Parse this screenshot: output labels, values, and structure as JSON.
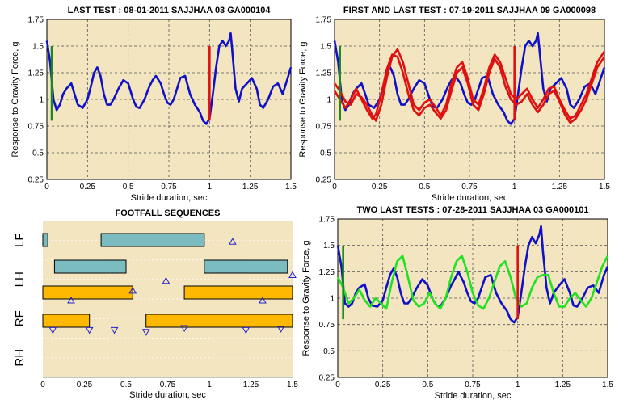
{
  "chart_data": [
    {
      "type": "line",
      "title": "LAST TEST : 08-01-2011  SAJJHAA 03 GA000104",
      "xlabel": "Stride duration, sec",
      "ylabel": "Response to Gravity Force, g",
      "xlim": [
        0,
        1.5
      ],
      "ylim": [
        0.25,
        1.75
      ],
      "xticks": [
        "0",
        "0.25",
        "0.5",
        "0.75",
        "1",
        "1.25",
        "1.5"
      ],
      "yticks": [
        "0.25",
        "0.5",
        "0.75",
        "1",
        "1.25",
        "1.5",
        "1.75"
      ],
      "grid": true,
      "series": [
        {
          "color": "#1010c8",
          "x": [
            0,
            0.02,
            0.04,
            0.06,
            0.08,
            0.1,
            0.12,
            0.15,
            0.17,
            0.19,
            0.22,
            0.25,
            0.27,
            0.29,
            0.31,
            0.33,
            0.35,
            0.37,
            0.39,
            0.41,
            0.44,
            0.47,
            0.5,
            0.53,
            0.55,
            0.57,
            0.6,
            0.63,
            0.65,
            0.67,
            0.7,
            0.72,
            0.74,
            0.76,
            0.78,
            0.8,
            0.82,
            0.85,
            0.88,
            0.91,
            0.94,
            0.96,
            0.98,
            1.0,
            1.02,
            1.04,
            1.06,
            1.08,
            1.1,
            1.12,
            1.13,
            1.14,
            1.16,
            1.18,
            1.2,
            1.23,
            1.26,
            1.29,
            1.31,
            1.33,
            1.36,
            1.39,
            1.42,
            1.45,
            1.48,
            1.5
          ],
          "y": [
            1.55,
            1.35,
            1.0,
            0.9,
            0.95,
            1.05,
            1.1,
            1.15,
            1.05,
            0.95,
            0.92,
            1.0,
            1.12,
            1.25,
            1.3,
            1.22,
            1.05,
            0.95,
            0.95,
            1.0,
            1.1,
            1.18,
            1.15,
            1.0,
            0.93,
            0.92,
            1.0,
            1.12,
            1.18,
            1.22,
            1.15,
            1.05,
            0.97,
            0.95,
            1.0,
            1.1,
            1.2,
            1.22,
            1.05,
            0.95,
            0.88,
            0.8,
            0.77,
            0.82,
            1.05,
            1.3,
            1.5,
            1.55,
            1.5,
            1.55,
            1.62,
            1.45,
            1.1,
            0.98,
            1.1,
            1.15,
            1.2,
            1.1,
            0.95,
            0.92,
            1.0,
            1.12,
            1.15,
            1.05,
            1.2,
            1.3
          ]
        }
      ],
      "markers": [
        {
          "x": 0.03,
          "y0": 0.8,
          "y1": 1.5,
          "color": "#1a8a1a"
        },
        {
          "x": 1.0,
          "y0": 0.8,
          "y1": 1.5,
          "color": "#e01010"
        }
      ]
    },
    {
      "type": "line",
      "title": "FIRST AND LAST TEST : 07-19-2011  SAJJHAA 09 GA000098",
      "xlabel": "Stride duration, sec",
      "ylabel": "Response to Gravity Force, g",
      "xlim": [
        0,
        1.5
      ],
      "ylim": [
        0.25,
        1.75
      ],
      "xticks": [
        "0",
        "0.25",
        "0.5",
        "0.75",
        "1",
        "1.25",
        "1.5"
      ],
      "yticks": [
        "0.25",
        "0.5",
        "0.75",
        "1",
        "1.25",
        "1.5",
        "1.75"
      ],
      "grid": true,
      "series": [
        {
          "color": "#1010c8",
          "x": [
            0,
            0.02,
            0.04,
            0.06,
            0.08,
            0.1,
            0.12,
            0.15,
            0.17,
            0.19,
            0.22,
            0.25,
            0.27,
            0.29,
            0.31,
            0.33,
            0.35,
            0.37,
            0.39,
            0.41,
            0.44,
            0.47,
            0.5,
            0.53,
            0.55,
            0.57,
            0.6,
            0.63,
            0.65,
            0.67,
            0.7,
            0.72,
            0.74,
            0.76,
            0.78,
            0.8,
            0.82,
            0.85,
            0.88,
            0.91,
            0.94,
            0.96,
            0.98,
            1.0,
            1.02,
            1.04,
            1.06,
            1.08,
            1.1,
            1.12,
            1.13,
            1.14,
            1.16,
            1.18,
            1.2,
            1.23,
            1.26,
            1.29,
            1.31,
            1.33,
            1.36,
            1.39,
            1.42,
            1.45,
            1.48,
            1.5
          ],
          "y": [
            1.55,
            1.35,
            1.0,
            0.9,
            0.95,
            1.05,
            1.1,
            1.15,
            1.05,
            0.95,
            0.92,
            1.0,
            1.12,
            1.25,
            1.3,
            1.22,
            1.05,
            0.95,
            0.95,
            1.0,
            1.1,
            1.18,
            1.15,
            1.0,
            0.93,
            0.92,
            1.0,
            1.12,
            1.18,
            1.22,
            1.15,
            1.05,
            0.97,
            0.95,
            1.0,
            1.1,
            1.2,
            1.22,
            1.05,
            0.95,
            0.88,
            0.8,
            0.77,
            0.82,
            1.05,
            1.3,
            1.5,
            1.55,
            1.5,
            1.55,
            1.62,
            1.45,
            1.1,
            0.98,
            1.1,
            1.15,
            1.2,
            1.1,
            0.95,
            0.92,
            1.0,
            1.12,
            1.15,
            1.05,
            1.2,
            1.3
          ]
        },
        {
          "color": "#e01010",
          "x": [
            0,
            0.03,
            0.06,
            0.09,
            0.12,
            0.15,
            0.18,
            0.21,
            0.23,
            0.26,
            0.29,
            0.32,
            0.35,
            0.38,
            0.41,
            0.44,
            0.47,
            0.5,
            0.53,
            0.56,
            0.59,
            0.62,
            0.65,
            0.68,
            0.71,
            0.74,
            0.77,
            0.8,
            0.83,
            0.86,
            0.89,
            0.92,
            0.95,
            0.98,
            1.01,
            1.04,
            1.07,
            1.1,
            1.13,
            1.16,
            1.19,
            1.22,
            1.25,
            1.28,
            1.31,
            1.34,
            1.37,
            1.4,
            1.43,
            1.46,
            1.5
          ],
          "y": [
            1.15,
            1.08,
            0.98,
            0.95,
            1.05,
            1.02,
            0.95,
            0.85,
            0.8,
            0.95,
            1.2,
            1.4,
            1.47,
            1.35,
            1.15,
            0.95,
            0.9,
            0.97,
            1.0,
            0.93,
            0.85,
            0.95,
            1.15,
            1.3,
            1.35,
            1.2,
            1.0,
            0.95,
            1.1,
            1.3,
            1.42,
            1.35,
            1.2,
            1.05,
            1.0,
            1.05,
            1.1,
            1.0,
            0.92,
            1.0,
            1.1,
            1.12,
            1.0,
            0.9,
            0.82,
            0.85,
            0.95,
            1.05,
            1.2,
            1.35,
            1.45
          ]
        },
        {
          "color": "#e01010",
          "x": [
            0,
            0.03,
            0.06,
            0.09,
            0.12,
            0.15,
            0.18,
            0.21,
            0.23,
            0.26,
            0.29,
            0.32,
            0.35,
            0.38,
            0.41,
            0.44,
            0.47,
            0.5,
            0.53,
            0.56,
            0.59,
            0.62,
            0.65,
            0.68,
            0.71,
            0.74,
            0.77,
            0.8,
            0.83,
            0.86,
            0.89,
            0.92,
            0.95,
            0.98,
            1.01,
            1.04,
            1.07,
            1.1,
            1.13,
            1.16,
            1.19,
            1.22,
            1.25,
            1.28,
            1.31,
            1.34,
            1.37,
            1.4,
            1.43,
            1.46,
            1.5
          ],
          "y": [
            1.08,
            1.0,
            0.92,
            1.0,
            1.1,
            1.0,
            0.9,
            0.82,
            0.86,
            1.05,
            1.28,
            1.42,
            1.4,
            1.25,
            1.05,
            0.9,
            0.85,
            0.92,
            0.95,
            0.88,
            0.82,
            0.9,
            1.08,
            1.25,
            1.3,
            1.15,
            0.95,
            0.9,
            1.05,
            1.25,
            1.38,
            1.3,
            1.12,
            1.0,
            0.95,
            0.98,
            1.05,
            0.95,
            0.88,
            0.95,
            1.05,
            1.08,
            0.98,
            0.86,
            0.78,
            0.82,
            0.9,
            1.0,
            1.15,
            1.3,
            1.4
          ]
        }
      ],
      "markers": [
        {
          "x": 0.03,
          "y0": 0.8,
          "y1": 1.5,
          "color": "#1a8a1a"
        },
        {
          "x": 1.0,
          "y0": 0.8,
          "y1": 1.5,
          "color": "#e01010"
        }
      ]
    },
    {
      "type": "gantt",
      "title": "FOOTFALL SEQUENCES",
      "xlabel": "Stride duration, sec",
      "xlim": [
        0,
        1.5
      ],
      "xticks": [
        "0",
        "0.25",
        "0.5",
        "0.75",
        "1",
        "1.25",
        "1.5"
      ],
      "rows": [
        "LF",
        "LH",
        "RF",
        "RH"
      ],
      "bars": [
        {
          "row": "LF",
          "start": 0.0,
          "end": 0.03,
          "color": "#7bbcc0"
        },
        {
          "row": "LF",
          "start": 0.35,
          "end": 0.97,
          "color": "#7bbcc0"
        },
        {
          "row": "LH",
          "start": 0.07,
          "end": 0.5,
          "color": "#7bbcc0"
        },
        {
          "row": "LH",
          "start": 0.97,
          "end": 1.47,
          "color": "#7bbcc0"
        },
        {
          "row": "RF",
          "start": 0.0,
          "end": 0.54,
          "color": "#ffb800"
        },
        {
          "row": "RF",
          "start": 0.85,
          "end": 1.5,
          "color": "#ffb800"
        },
        {
          "row": "RH",
          "start": 0.0,
          "end": 0.28,
          "color": "#ffb800"
        },
        {
          "row": "RH",
          "start": 0.62,
          "end": 1.5,
          "color": "#ffb800"
        }
      ],
      "up_triangles": [
        {
          "x": 1.14,
          "y": 0.5
        },
        {
          "x": 0.74,
          "y": 1.5
        },
        {
          "x": 0.54,
          "y": 1.75
        },
        {
          "x": 1.5,
          "y": 1.35
        },
        {
          "x": 0.17,
          "y": 2.0
        },
        {
          "x": 1.32,
          "y": 2.0
        }
      ],
      "down_triangles": [
        {
          "x": 0.06,
          "y": 2.75
        },
        {
          "x": 0.28,
          "y": 2.75
        },
        {
          "x": 0.43,
          "y": 2.75
        },
        {
          "x": 0.62,
          "y": 2.8
        },
        {
          "x": 0.85,
          "y": 2.7
        },
        {
          "x": 1.22,
          "y": 2.75
        },
        {
          "x": 1.43,
          "y": 2.72
        }
      ]
    },
    {
      "type": "line",
      "title": "TWO LAST TESTS : 07-28-2011  SAJJHAA 03 GA000101",
      "xlabel": "Stride duration, sec",
      "ylabel": "Response to Gravity Force, g",
      "xlim": [
        0,
        1.5
      ],
      "ylim": [
        0.25,
        1.75
      ],
      "xticks": [
        "0",
        "0.25",
        "0.5",
        "0.75",
        "1",
        "1.25",
        "1.5"
      ],
      "yticks": [
        "0.25",
        "0.5",
        "0.75",
        "1",
        "1.25",
        "1.5",
        "1.75"
      ],
      "grid": true,
      "series": [
        {
          "color": "#1010c8",
          "x": [
            0,
            0.02,
            0.04,
            0.06,
            0.08,
            0.1,
            0.12,
            0.15,
            0.17,
            0.19,
            0.22,
            0.25,
            0.27,
            0.29,
            0.31,
            0.33,
            0.35,
            0.37,
            0.39,
            0.41,
            0.44,
            0.47,
            0.5,
            0.53,
            0.55,
            0.57,
            0.6,
            0.63,
            0.65,
            0.67,
            0.7,
            0.72,
            0.74,
            0.76,
            0.78,
            0.8,
            0.82,
            0.85,
            0.88,
            0.91,
            0.94,
            0.96,
            0.98,
            1.0,
            1.02,
            1.04,
            1.06,
            1.08,
            1.1,
            1.12,
            1.13,
            1.14,
            1.16,
            1.18,
            1.2,
            1.23,
            1.26,
            1.29,
            1.31,
            1.33,
            1.36,
            1.39,
            1.42,
            1.45,
            1.48,
            1.5
          ],
          "y": [
            1.5,
            1.3,
            0.95,
            0.92,
            0.95,
            1.05,
            1.1,
            1.13,
            1.0,
            0.93,
            0.92,
            0.98,
            1.1,
            1.22,
            1.28,
            1.2,
            1.05,
            0.95,
            0.95,
            1.0,
            1.1,
            1.18,
            1.12,
            0.98,
            0.93,
            0.92,
            1.0,
            1.12,
            1.18,
            1.25,
            1.15,
            1.05,
            0.97,
            0.95,
            1.0,
            1.1,
            1.2,
            1.22,
            1.05,
            0.95,
            0.88,
            0.8,
            0.77,
            0.82,
            1.05,
            1.3,
            1.5,
            1.58,
            1.52,
            1.6,
            1.68,
            1.45,
            1.1,
            0.95,
            1.05,
            1.12,
            1.18,
            1.05,
            0.93,
            0.92,
            1.0,
            1.1,
            1.12,
            1.05,
            1.22,
            1.3
          ]
        },
        {
          "color": "#22e022",
          "x": [
            0,
            0.03,
            0.06,
            0.09,
            0.12,
            0.15,
            0.18,
            0.21,
            0.24,
            0.27,
            0.3,
            0.33,
            0.36,
            0.39,
            0.42,
            0.45,
            0.48,
            0.51,
            0.54,
            0.57,
            0.6,
            0.63,
            0.66,
            0.69,
            0.72,
            0.75,
            0.78,
            0.81,
            0.84,
            0.87,
            0.9,
            0.93,
            0.96,
            0.99,
            1.02,
            1.05,
            1.08,
            1.11,
            1.14,
            1.17,
            1.2,
            1.23,
            1.26,
            1.29,
            1.32,
            1.35,
            1.38,
            1.41,
            1.44,
            1.47,
            1.5
          ],
          "y": [
            1.2,
            1.1,
            0.95,
            1.0,
            1.08,
            0.98,
            0.92,
            1.0,
            0.95,
            0.9,
            1.15,
            1.35,
            1.4,
            1.2,
            0.98,
            0.92,
            0.95,
            1.05,
            0.95,
            0.9,
            1.0,
            1.2,
            1.35,
            1.4,
            1.25,
            1.05,
            0.93,
            0.9,
            1.0,
            1.15,
            1.3,
            1.35,
            1.2,
            1.0,
            0.92,
            0.95,
            1.1,
            1.2,
            1.22,
            1.22,
            1.05,
            0.92,
            0.92,
            1.0,
            1.05,
            0.98,
            0.92,
            1.0,
            1.15,
            1.3,
            1.4
          ]
        }
      ],
      "markers": [
        {
          "x": 0.03,
          "y0": 0.8,
          "y1": 1.5,
          "color": "#1a8a1a"
        },
        {
          "x": 1.0,
          "y0": 0.8,
          "y1": 1.5,
          "color": "#e01010"
        }
      ]
    }
  ],
  "colors": {
    "plot_bg": "#f2e5c0",
    "grid": "#555555",
    "axis": "#000000"
  }
}
